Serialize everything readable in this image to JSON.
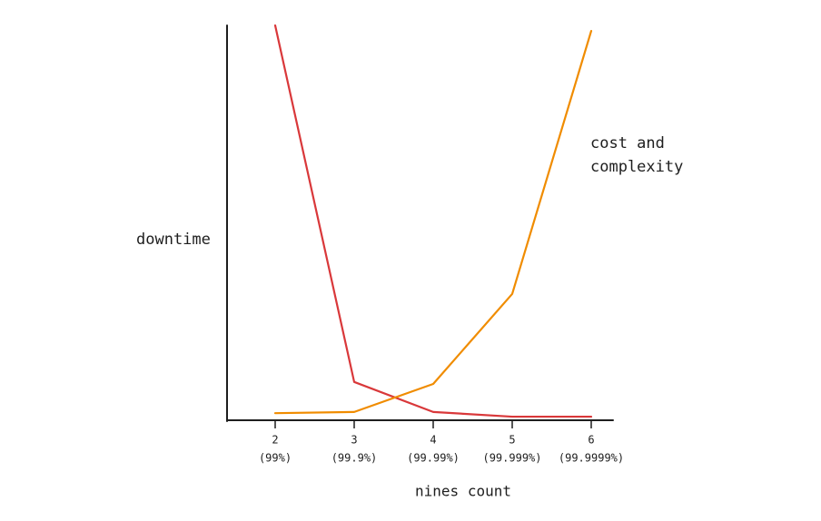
{
  "chart_data": {
    "type": "line",
    "x_label": "nines count",
    "categories": [
      "2",
      "3",
      "4",
      "5",
      "6"
    ],
    "category_sublabels": [
      "(99%)",
      "(99.9%)",
      "(99.99%)",
      "(99.999%)",
      "(99.9999%)"
    ],
    "series": [
      {
        "name": "downtime",
        "color": "#d9383a",
        "values": [
          100,
          9.7,
          2.1,
          0.9,
          0.9
        ]
      },
      {
        "name": "cost and complexity",
        "color": "#f08c00",
        "values": [
          1.8,
          2.1,
          9.2,
          32,
          98.6
        ]
      }
    ],
    "ylim": [
      0,
      100
    ],
    "grid": false
  }
}
